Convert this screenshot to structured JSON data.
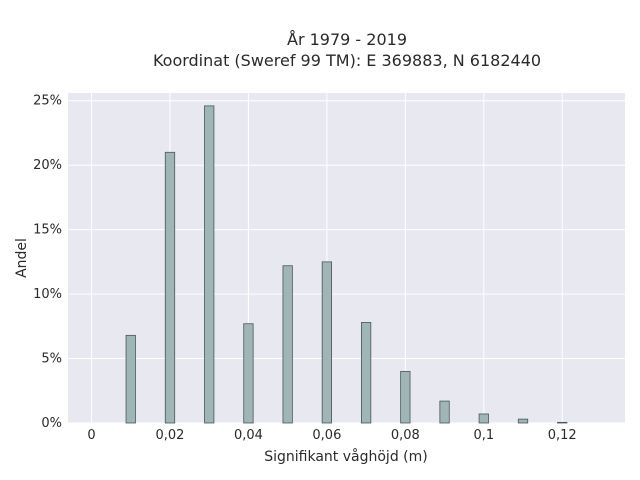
{
  "chart_data": {
    "type": "bar",
    "title_lines": [
      "År 1979 - 2019",
      "Koordinat (Sweref 99 TM): E 369883, N 6182440"
    ],
    "xlabel": "Signifikant våghöjd (m)",
    "ylabel": "Andel",
    "x": [
      0.01,
      0.02,
      0.03,
      0.04,
      0.05,
      0.06,
      0.07,
      0.08,
      0.09,
      0.1,
      0.11,
      0.12
    ],
    "values": [
      6.8,
      21.0,
      24.6,
      7.7,
      12.2,
      12.5,
      7.8,
      4.0,
      1.7,
      0.7,
      0.3,
      0.05
    ],
    "x_ticks": [
      {
        "value": 0,
        "label": "0"
      },
      {
        "value": 0.02,
        "label": "0,02"
      },
      {
        "value": 0.04,
        "label": "0,04"
      },
      {
        "value": 0.06,
        "label": "0,06"
      },
      {
        "value": 0.08,
        "label": "0,08"
      },
      {
        "value": 0.1,
        "label": "0,1"
      },
      {
        "value": 0.12,
        "label": "0,12"
      }
    ],
    "y_ticks": [
      {
        "value": 0,
        "label": "0%"
      },
      {
        "value": 5,
        "label": "5%"
      },
      {
        "value": 10,
        "label": "10%"
      },
      {
        "value": 15,
        "label": "15%"
      },
      {
        "value": 20,
        "label": "20%"
      },
      {
        "value": 25,
        "label": "25%"
      }
    ],
    "xlim": [
      -0.006,
      0.136
    ],
    "ylim": [
      0,
      25.6
    ],
    "bar_width_data": 0.0024,
    "grid": true,
    "colors": {
      "plot_background": "#e8e8f1",
      "grid": "#ffffff",
      "bar_fill": "#9fb5b6",
      "bar_edge": "#4a5656"
    }
  }
}
